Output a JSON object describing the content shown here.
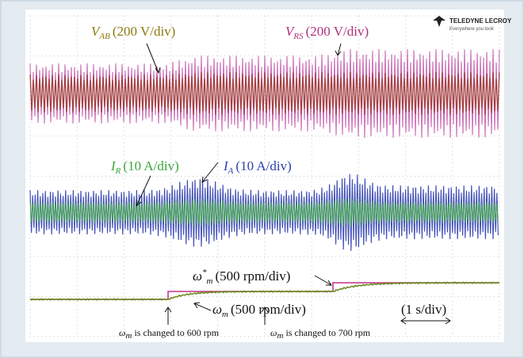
{
  "logo": {
    "name": "TELEDYNE LECROY",
    "tagline": "Everywhere you look"
  },
  "labels": {
    "v_ab": {
      "symbol": "V",
      "sub": "AB",
      "scale": "(200 V/div)"
    },
    "v_rs": {
      "symbol": "V",
      "sub": "RS",
      "scale": "(200 V/div)"
    },
    "i_r": {
      "symbol": "I",
      "sub": "R",
      "scale": "(10 A/div)"
    },
    "i_a": {
      "symbol": "I",
      "sub": "A",
      "scale": "(10 A/div)"
    },
    "w_ref": {
      "symbol": "ω",
      "sup": "*",
      "sub": "m",
      "scale": "(500 rpm/div)"
    },
    "w_m": {
      "symbol": "ω",
      "sub": "m",
      "scale": "(500 rpm/div)"
    },
    "time": "(1 s/div)"
  },
  "notes": [
    {
      "symbol": "ω",
      "sub": "m",
      "text": "is changed to 600 rpm"
    },
    {
      "symbol": "ω",
      "sub": "m",
      "text": "is changed to 700 rpm"
    }
  ]
}
